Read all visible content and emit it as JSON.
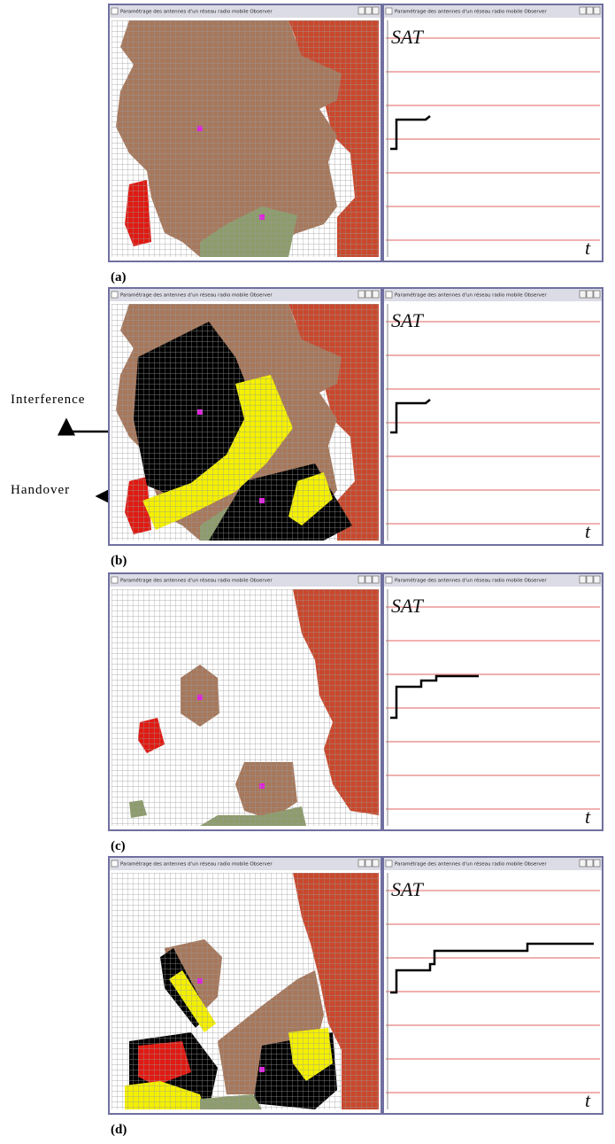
{
  "figure": {
    "panels": [
      {
        "label": "(a)",
        "map_window": {
          "title": "Paramétrage des antennes d'un réseau radio mobile Observer"
        },
        "chart_window": {
          "title": "Paramétrage des antennes d'un réseau radio mobile Observer",
          "chart_title": "SAT",
          "x_axis_label": "t"
        }
      },
      {
        "label": "(b)",
        "map_window": {
          "title": "Paramétrage des antennes d'un réseau radio mobile Observer"
        },
        "chart_window": {
          "title": "Paramétrage des antennes d'un réseau radio mobile Observer",
          "chart_title": "SAT",
          "x_axis_label": "t"
        }
      },
      {
        "label": "(c)",
        "map_window": {
          "title": "Paramétrage des antennes d'un réseau radio mobile Observer"
        },
        "chart_window": {
          "title": "Paramétrage des antennes d'un réseau radio mobile Observer",
          "chart_title": "SAT",
          "x_axis_label": "t"
        }
      },
      {
        "label": "(d)",
        "map_window": {
          "title": "Paramétrage des antennes d'un réseau radio mobile Observer"
        },
        "chart_window": {
          "title": "Paramétrage des antennes d'un réseau radio mobile Observer",
          "chart_title": "SAT",
          "x_axis_label": "t"
        }
      }
    ],
    "annotations": [
      {
        "text": "Interference"
      },
      {
        "text": "Handover"
      }
    ]
  }
}
